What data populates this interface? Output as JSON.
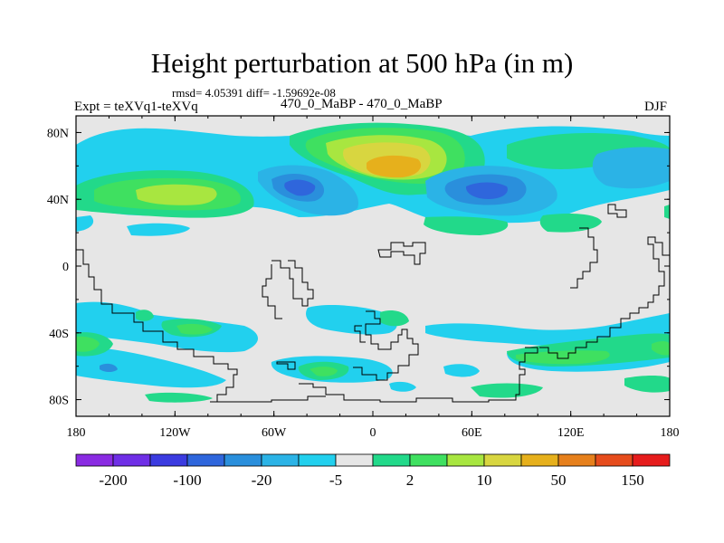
{
  "header": {
    "title": "Height perturbation at 500 hPa (in m)",
    "rmsd_text": "rmsd= 4.05391 diff= -1.59692e-08",
    "expt_label": "Expt = teXVq1-teXVq",
    "case_label": "470_0_MaBP - 470_0_MaBP",
    "season": "DJF"
  },
  "chart_data": {
    "type": "heatmap",
    "title": "Height perturbation at 500 hPa (in m)",
    "variable": "500 hPa height perturbation",
    "units": "m",
    "season": "DJF",
    "x_axis": {
      "range": [
        -180,
        180
      ],
      "ticks": [
        -180,
        -120,
        -60,
        0,
        60,
        120,
        180
      ],
      "tick_labels": [
        "180",
        "120W",
        "60W",
        "0",
        "60E",
        "120E",
        "180"
      ]
    },
    "y_axis": {
      "range": [
        -90,
        90
      ],
      "ticks": [
        80,
        40,
        0,
        -40,
        -80
      ],
      "tick_labels": [
        "80N",
        "40N",
        "0",
        "40S",
        "80S"
      ]
    },
    "colorbar": {
      "colors": [
        "#8a2be2",
        "#6f2fe6",
        "#3b3be0",
        "#2f66dc",
        "#2a8fdc",
        "#2bb3e6",
        "#22d0ee",
        "#e6e6e6",
        "#22d98a",
        "#3fe060",
        "#a8e640",
        "#d8d640",
        "#e6b01c",
        "#e6801c",
        "#e64c1c",
        "#e61c1c"
      ],
      "tick_labels": [
        "-200",
        "-100",
        "-20",
        "-5",
        "2",
        "10",
        "50",
        "150"
      ]
    },
    "features": [
      {
        "name": "NH high-latitude positive max",
        "lon": 10,
        "lat": 70,
        "level": 50
      },
      {
        "name": "Pacific mid-latitude positive max",
        "lon": -110,
        "lat": 45,
        "level": 10
      },
      {
        "name": "North American negative center",
        "lon": -45,
        "lat": 47,
        "level": -20
      },
      {
        "name": "Eurasian negative center",
        "lon": 70,
        "lat": 43,
        "level": -20
      },
      {
        "name": "SH Indian Ocean positive band",
        "lon": 110,
        "lat": -52,
        "level": 10
      },
      {
        "name": "SH Atlantic positive patch",
        "lon": -20,
        "lat": -65,
        "level": 10
      }
    ]
  }
}
